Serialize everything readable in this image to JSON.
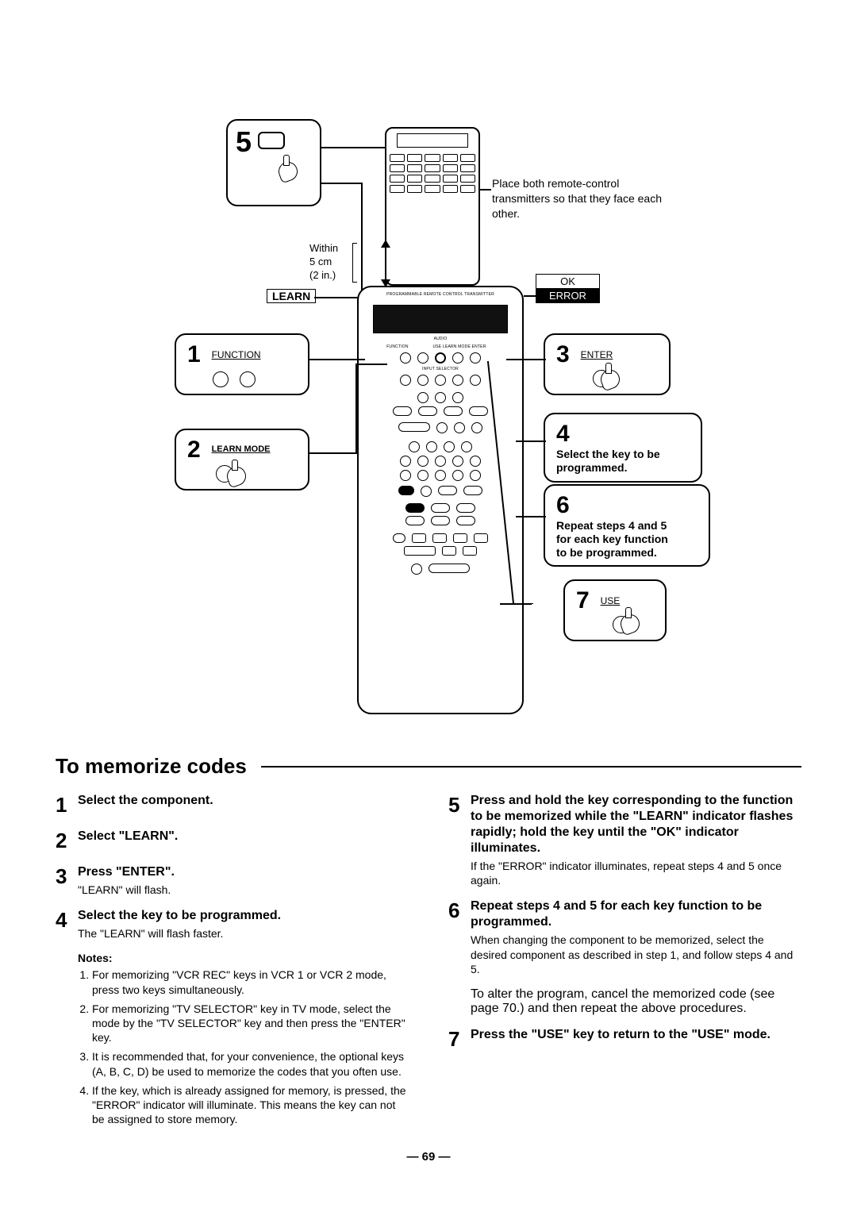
{
  "page_number": "— 69 —",
  "section_title": "To memorize codes",
  "diagram": {
    "five_number": "5",
    "place_text": "Place both remote-control transmitters so that they face each other.",
    "within_line1": "Within",
    "within_line2": "5 cm",
    "within_line3": "(2 in.)",
    "learn_box": "LEARN",
    "ok": "OK",
    "error": "ERROR",
    "callouts": {
      "c1": {
        "num": "1",
        "label": "FUNCTION"
      },
      "c2": {
        "num": "2",
        "label": "LEARN MODE"
      },
      "c3": {
        "num": "3",
        "label": "ENTER"
      },
      "c4": {
        "num": "4",
        "label": "Select the key to be programmed."
      },
      "c6": {
        "num": "6",
        "label": "Repeat steps 4 and 5 for each key function to be programmed."
      },
      "c7": {
        "num": "7",
        "label": "USE"
      }
    },
    "remote_labels": {
      "audio": "AUDIO",
      "function": "FUNCTION",
      "use_learn": "USE  LEARN  MODE ENTER"
    }
  },
  "left_steps": [
    {
      "num": "1",
      "head": "Select the component."
    },
    {
      "num": "2",
      "head": "Select \"LEARN\"."
    },
    {
      "num": "3",
      "head": "Press \"ENTER\".",
      "desc": "\"LEARN\" will flash."
    },
    {
      "num": "4",
      "head": "Select the key to be programmed.",
      "desc": "The \"LEARN\" will flash faster."
    }
  ],
  "notes_label": "Notes:",
  "notes": [
    "For memorizing \"VCR REC\" keys in VCR 1 or VCR 2 mode, press two keys simultaneously.",
    "For memorizing \"TV SELECTOR\" key in TV mode, select the mode by the \"TV SELECTOR\" key and then press the \"ENTER\" key.",
    "It is recommended that, for your convenience, the optional keys (A, B, C, D) be used to memorize the codes that you often use.",
    "If the key, which is already assigned for memory, is pressed, the \"ERROR\" indicator will illuminate. This means the key can not be assigned to store memory."
  ],
  "right_steps": [
    {
      "num": "5",
      "head": "Press and hold the key corresponding to the function to be memorized while the \"LEARN\" indicator flashes rapidly; hold the key until the \"OK\" indicator illuminates.",
      "desc": "If the \"ERROR\" indicator illuminates, repeat steps 4 and 5 once again."
    },
    {
      "num": "6",
      "head": "Repeat steps 4 and 5 for each key function to be programmed.",
      "desc": "When changing the component to be memorized, select the desired component as described in step 1, and follow steps 4 and 5."
    }
  ],
  "right_extra": "To alter the program, cancel the memorized code (see page 70.) and then repeat the above procedures.",
  "step7": {
    "num": "7",
    "head": "Press the \"USE\" key to return to the \"USE\" mode."
  }
}
